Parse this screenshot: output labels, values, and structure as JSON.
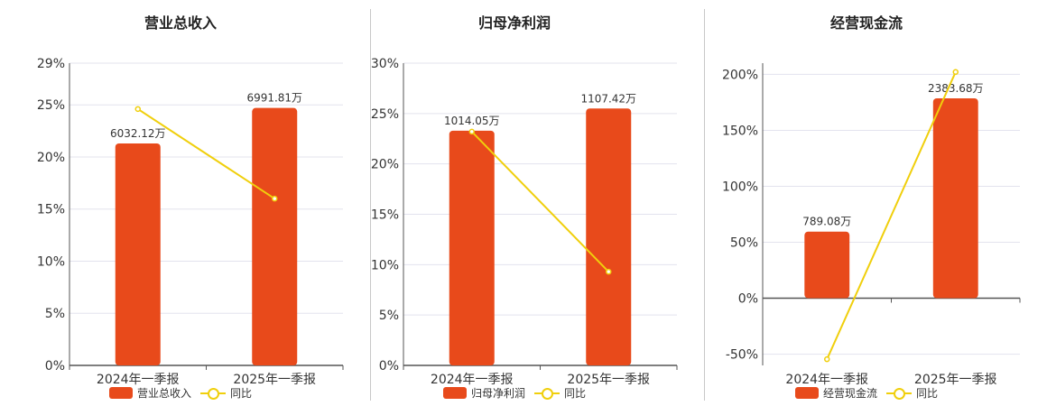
{
  "colors": {
    "bar": "#e84a1b",
    "line": "#f0cf0c",
    "grid": "#e3e3ee",
    "axis": "#555555"
  },
  "chart_data": [
    {
      "type": "bar",
      "title": "营业总收入",
      "categories": [
        "2024年一季报",
        "2025年一季报"
      ],
      "bar_series": {
        "name": "营业总收入",
        "data_labels": [
          "6032.12万",
          "6991.81万"
        ]
      },
      "line_series": {
        "name": "同比",
        "values": [
          24.6,
          16.0
        ]
      },
      "yticks": [
        "0%",
        "5%",
        "10%",
        "15%",
        "20%",
        "25%",
        "29%"
      ],
      "ylim": [
        0,
        29
      ],
      "bar_heights_pct": [
        21.3,
        24.7
      ],
      "xlabel": "",
      "ylabel": "",
      "grid": true,
      "legend_position": "bottom"
    },
    {
      "type": "bar",
      "title": "归母净利润",
      "categories": [
        "2024年一季报",
        "2025年一季报"
      ],
      "bar_series": {
        "name": "归母净利润",
        "data_labels": [
          "1014.05万",
          "1107.42万"
        ]
      },
      "line_series": {
        "name": "同比",
        "values": [
          23.2,
          9.3
        ]
      },
      "yticks": [
        "0%",
        "5%",
        "10%",
        "15%",
        "20%",
        "25%",
        "30%"
      ],
      "ylim": [
        0,
        30
      ],
      "bar_heights_pct": [
        23.3,
        25.5
      ],
      "xlabel": "",
      "ylabel": "",
      "grid": true,
      "legend_position": "bottom"
    },
    {
      "type": "bar",
      "title": "经营现金流",
      "categories": [
        "2024年一季报",
        "2025年一季报"
      ],
      "bar_series": {
        "name": "经营现金流",
        "data_labels": [
          "789.08万",
          "2383.68万"
        ]
      },
      "line_series": {
        "name": "同比",
        "values": [
          -54.5,
          202.1
        ]
      },
      "yticks": [
        "-50%",
        "0%",
        "50%",
        "100%",
        "150%",
        "200%"
      ],
      "ylim": [
        -60,
        210
      ],
      "bar_heights_pct": [
        59.5,
        178.6
      ],
      "xlabel": "",
      "ylabel": "",
      "grid": true,
      "legend_position": "bottom"
    }
  ]
}
